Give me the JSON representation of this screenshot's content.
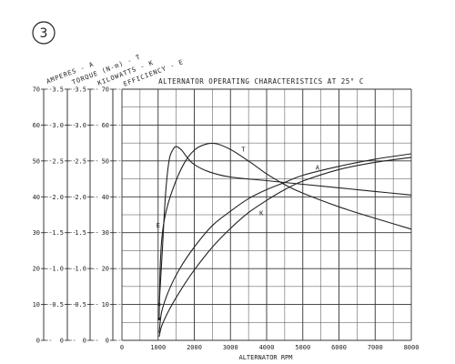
{
  "figure_number": "3",
  "legend_lines": [
    "AMPERES - A",
    "TORQUE (N-m) - T",
    "KILOWATTS - K",
    "EFFICIENCY - E"
  ],
  "chart_data": {
    "type": "line",
    "title": "ALTERNATOR OPERATING CHARACTERISTICS AT 25° C",
    "xlabel": "ALTERNATOR RPM",
    "xlim": [
      0,
      8000
    ],
    "x_ticks": [
      "0",
      "1000",
      "2000",
      "3000",
      "4000",
      "5000",
      "6000",
      "7000",
      "8000"
    ],
    "x_tick_values": [
      0,
      1000,
      2000,
      3000,
      4000,
      5000,
      6000,
      7000,
      8000
    ],
    "grid": true,
    "y_axes": [
      {
        "name": "amperes_efficiency",
        "range": [
          0,
          70
        ],
        "ticks": [
          "0",
          "10",
          "20",
          "30",
          "40",
          "50",
          "60",
          "70"
        ]
      },
      {
        "name": "torque",
        "range": [
          0,
          3.5
        ],
        "ticks": [
          "0",
          "0.5",
          "1.0",
          "1.5",
          "2.0",
          "2.5",
          "3.0",
          "3.5"
        ]
      },
      {
        "name": "kilowatts",
        "range": [
          0,
          3.5
        ],
        "ticks": [
          "0",
          "0.5",
          "1.0",
          "1.5",
          "2.0",
          "2.5",
          "3.0",
          "3.5"
        ]
      },
      {
        "name": "efficiency",
        "range": [
          0,
          70
        ],
        "ticks": [
          "0",
          "10",
          "20",
          "30",
          "40",
          "50",
          "60",
          "70"
        ]
      }
    ],
    "series": [
      {
        "name": "E",
        "axis": "efficiency",
        "x": [
          1030,
          1100,
          1200,
          1300,
          1400,
          1500,
          1650,
          1800,
          2000,
          2400,
          3000,
          4000,
          5000,
          6000,
          7000,
          8000
        ],
        "y": [
          10,
          22,
          40,
          50,
          53,
          54,
          53,
          51,
          49,
          47,
          45.5,
          44.5,
          43.5,
          42.5,
          41.5,
          40.5
        ]
      },
      {
        "name": "T",
        "axis": "torque",
        "x": [
          1030,
          1050,
          1100,
          1200,
          1400,
          1700,
          2000,
          2300,
          2600,
          3000,
          3500,
          4000,
          4500,
          5000,
          6000,
          7000,
          8000
        ],
        "y": [
          0.3,
          0.9,
          1.4,
          1.75,
          2.1,
          2.45,
          2.65,
          2.73,
          2.74,
          2.66,
          2.5,
          2.32,
          2.17,
          2.05,
          1.86,
          1.7,
          1.55
        ]
      },
      {
        "name": "A",
        "axis": "amperes_efficiency",
        "x": [
          1030,
          1100,
          1300,
          1600,
          2000,
          2500,
          3000,
          3500,
          4000,
          4500,
          5000,
          6000,
          7000,
          8000
        ],
        "y": [
          2,
          8,
          14,
          20,
          26,
          32,
          36,
          39.5,
          42,
          44,
          46,
          48.5,
          50.5,
          52
        ]
      },
      {
        "name": "K",
        "axis": "kilowatts",
        "x": [
          1030,
          1100,
          1300,
          1600,
          2000,
          2500,
          3000,
          3500,
          4000,
          4500,
          5000,
          6000,
          7000,
          8000
        ],
        "y": [
          0.05,
          0.2,
          0.42,
          0.68,
          0.98,
          1.3,
          1.56,
          1.78,
          1.95,
          2.1,
          2.22,
          2.38,
          2.48,
          2.55
        ]
      }
    ]
  }
}
